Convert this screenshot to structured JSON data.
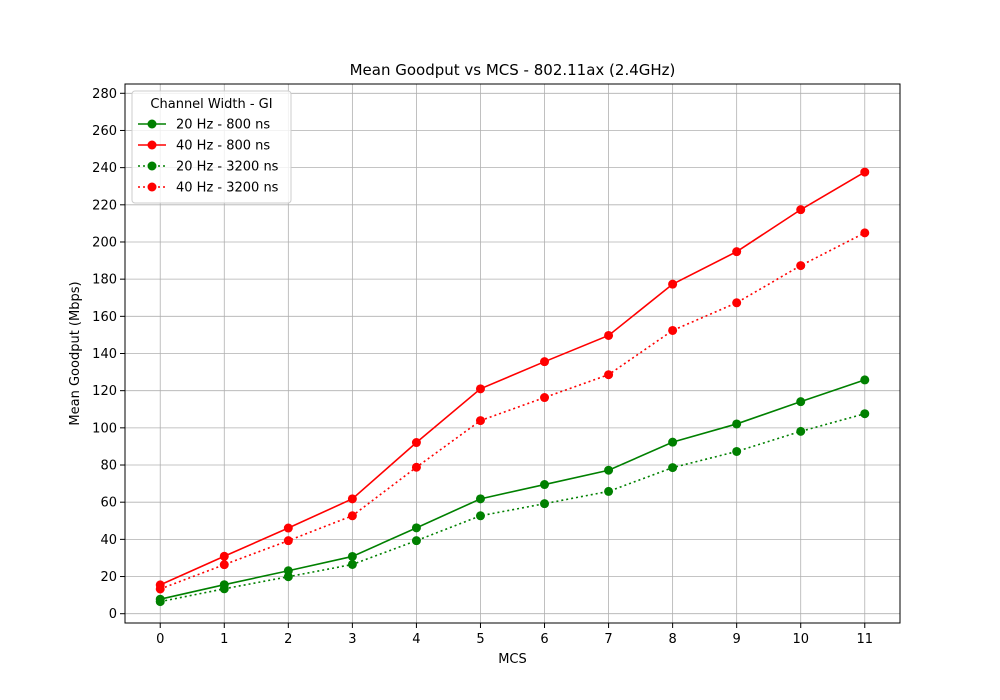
{
  "chart_data": {
    "type": "line",
    "title": "Mean Goodput vs MCS - 802.11ax (2.4GHz)",
    "xlabel": "MCS",
    "ylabel": "Mean Goodput (Mbps)",
    "x": [
      0,
      1,
      2,
      3,
      4,
      5,
      6,
      7,
      8,
      9,
      10,
      11
    ],
    "xlim": [
      -0.55,
      11.55
    ],
    "ylim": [
      -5,
      285
    ],
    "xticks": [
      "0",
      "1",
      "2",
      "3",
      "4",
      "5",
      "6",
      "7",
      "8",
      "9",
      "10",
      "11"
    ],
    "yticks": [
      0,
      20,
      40,
      60,
      80,
      100,
      120,
      140,
      160,
      180,
      200,
      220,
      240,
      260,
      280
    ],
    "grid": true,
    "legend": {
      "title": "Channel Width - GI",
      "placement": "upper-left"
    },
    "series": [
      {
        "name": "20 Hz - 800 ns",
        "color": "#008000",
        "style": "solid",
        "values": [
          7.8,
          15.6,
          23.1,
          30.8,
          46.2,
          61.8,
          69.5,
          77.2,
          92.3,
          102.1,
          114.1,
          125.8
        ]
      },
      {
        "name": "40 Hz - 800 ns",
        "color": "#ff0000",
        "style": "solid",
        "values": [
          15.5,
          30.9,
          46.1,
          61.8,
          92.1,
          121.0,
          135.6,
          149.7,
          177.3,
          194.8,
          217.4,
          237.6
        ]
      },
      {
        "name": "20 Hz - 3200 ns",
        "color": "#008000",
        "style": "dotted",
        "values": [
          6.5,
          13.4,
          19.9,
          26.5,
          39.3,
          52.7,
          59.2,
          65.8,
          78.6,
          87.3,
          98.1,
          107.6
        ]
      },
      {
        "name": "40 Hz - 3200 ns",
        "color": "#ff0000",
        "style": "dotted",
        "values": [
          13.3,
          26.4,
          39.3,
          52.7,
          78.8,
          103.9,
          116.3,
          128.6,
          152.4,
          167.3,
          187.3,
          204.9
        ]
      }
    ]
  }
}
